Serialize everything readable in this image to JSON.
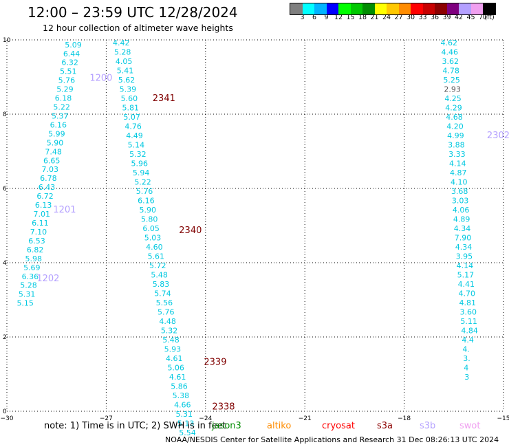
{
  "header": {
    "title": "12:00 – 23:59 UTC 12/28/2024",
    "subtitle": "12 hour collection of altimeter wave heights"
  },
  "color_scale": {
    "unit": "(ft)",
    "colors": [
      "#7f7f7f",
      "#00ffff",
      "#00b4ff",
      "#0000ff",
      "#00ff00",
      "#00c800",
      "#008c00",
      "#ffff00",
      "#ffc800",
      "#ff8c00",
      "#ff0000",
      "#c80000",
      "#8c0000",
      "#7f007f",
      "#b4a0ff",
      "#f0a0f0",
      "#000000"
    ],
    "labels": [
      "3",
      "6",
      "9",
      "12",
      "15",
      "18",
      "21",
      "24",
      "27",
      "30",
      "33",
      "36",
      "39",
      "42",
      "45",
      "70"
    ]
  },
  "chart_data": {
    "type": "scatter",
    "xlim": [
      -30,
      -15
    ],
    "ylim": [
      0,
      10
    ],
    "x_ticks": [
      "−30",
      "−27",
      "−24",
      "−21",
      "−18",
      "−15"
    ],
    "y_ticks": [
      "0",
      "2",
      "4",
      "6",
      "8",
      "10"
    ],
    "grid": true,
    "tracks": [
      {
        "labels": [
          {
            "text": "1200",
            "x": -27.5,
            "y": 8.9,
            "color": "#b4a0ff"
          },
          {
            "text": "1201",
            "x": -28.6,
            "y": 5.35,
            "color": "#b4a0ff"
          },
          {
            "text": "1202",
            "x": -29.1,
            "y": 3.5,
            "color": "#b4a0ff"
          }
        ],
        "points": [
          {
            "x": -28.25,
            "y": 9.8,
            "v": "5.09"
          },
          {
            "x": -28.3,
            "y": 9.56,
            "v": "6.44"
          },
          {
            "x": -28.35,
            "y": 9.32,
            "v": "6.32"
          },
          {
            "x": -28.4,
            "y": 9.08,
            "v": "5.51"
          },
          {
            "x": -28.45,
            "y": 8.84,
            "v": "5.76"
          },
          {
            "x": -28.5,
            "y": 8.6,
            "v": "5.29"
          },
          {
            "x": -28.55,
            "y": 8.36,
            "v": "6.18"
          },
          {
            "x": -28.6,
            "y": 8.12,
            "v": "5.22"
          },
          {
            "x": -28.65,
            "y": 7.88,
            "v": "5.37"
          },
          {
            "x": -28.7,
            "y": 7.64,
            "v": "6.16"
          },
          {
            "x": -28.75,
            "y": 7.4,
            "v": "5.99"
          },
          {
            "x": -28.8,
            "y": 7.16,
            "v": "5.90"
          },
          {
            "x": -28.85,
            "y": 6.92,
            "v": "7.48"
          },
          {
            "x": -28.9,
            "y": 6.68,
            "v": "6.65"
          },
          {
            "x": -28.95,
            "y": 6.44,
            "v": "7.03"
          },
          {
            "x": -29.0,
            "y": 6.2,
            "v": "6.78"
          },
          {
            "x": -29.05,
            "y": 5.96,
            "v": "6.43"
          },
          {
            "x": -29.1,
            "y": 5.72,
            "v": "6.72"
          },
          {
            "x": -29.15,
            "y": 5.48,
            "v": "6.13"
          },
          {
            "x": -29.2,
            "y": 5.24,
            "v": "7.01"
          },
          {
            "x": -29.25,
            "y": 5.0,
            "v": "6.11"
          },
          {
            "x": -29.3,
            "y": 4.76,
            "v": "7.10"
          },
          {
            "x": -29.35,
            "y": 4.52,
            "v": "6.53"
          },
          {
            "x": -29.4,
            "y": 4.28,
            "v": "6.82"
          },
          {
            "x": -29.45,
            "y": 4.04,
            "v": "5.98"
          },
          {
            "x": -29.5,
            "y": 3.8,
            "v": "5.69"
          },
          {
            "x": -29.55,
            "y": 3.56,
            "v": "6.36"
          },
          {
            "x": -29.6,
            "y": 3.32,
            "v": "5.28"
          },
          {
            "x": -29.65,
            "y": 3.08,
            "v": "5.31"
          },
          {
            "x": -29.7,
            "y": 2.84,
            "v": "5.15"
          }
        ]
      },
      {
        "labels": [
          {
            "text": "2341",
            "x": -25.6,
            "y": 8.35,
            "color": "#800000"
          },
          {
            "text": "2340",
            "x": -24.8,
            "y": 4.8,
            "color": "#800000"
          },
          {
            "text": "2339",
            "x": -24.05,
            "y": 1.25,
            "color": "#800000"
          },
          {
            "text": "2338",
            "x": -23.8,
            "y": 0.05,
            "color": "#800000"
          }
        ],
        "points": [
          {
            "x": -26.8,
            "y": 9.85,
            "v": "4.42"
          },
          {
            "x": -26.76,
            "y": 9.6,
            "v": "5.28"
          },
          {
            "x": -26.72,
            "y": 9.35,
            "v": "4.05"
          },
          {
            "x": -26.68,
            "y": 9.1,
            "v": "5.41"
          },
          {
            "x": -26.64,
            "y": 8.85,
            "v": "5.62"
          },
          {
            "x": -26.6,
            "y": 8.6,
            "v": "5.39"
          },
          {
            "x": -26.56,
            "y": 8.35,
            "v": "5.60"
          },
          {
            "x": -26.52,
            "y": 8.1,
            "v": "5.81"
          },
          {
            "x": -26.48,
            "y": 7.85,
            "v": "5.07"
          },
          {
            "x": -26.44,
            "y": 7.6,
            "v": "4.76"
          },
          {
            "x": -26.4,
            "y": 7.35,
            "v": "4.49"
          },
          {
            "x": -26.35,
            "y": 7.1,
            "v": "5.14"
          },
          {
            "x": -26.3,
            "y": 6.85,
            "v": "5.32"
          },
          {
            "x": -26.25,
            "y": 6.6,
            "v": "5.96"
          },
          {
            "x": -26.2,
            "y": 6.35,
            "v": "5.94"
          },
          {
            "x": -26.15,
            "y": 6.1,
            "v": "5.22"
          },
          {
            "x": -26.1,
            "y": 5.85,
            "v": "5.76"
          },
          {
            "x": -26.05,
            "y": 5.6,
            "v": "6.16"
          },
          {
            "x": -26.0,
            "y": 5.35,
            "v": "5.90"
          },
          {
            "x": -25.95,
            "y": 5.1,
            "v": "5.80"
          },
          {
            "x": -25.9,
            "y": 4.85,
            "v": "6.05"
          },
          {
            "x": -25.85,
            "y": 4.6,
            "v": "5.03"
          },
          {
            "x": -25.8,
            "y": 4.35,
            "v": "4.60"
          },
          {
            "x": -25.75,
            "y": 4.1,
            "v": "5.61"
          },
          {
            "x": -25.7,
            "y": 3.85,
            "v": "5.72"
          },
          {
            "x": -25.65,
            "y": 3.6,
            "v": "5.48"
          },
          {
            "x": -25.6,
            "y": 3.35,
            "v": "5.83"
          },
          {
            "x": -25.55,
            "y": 3.1,
            "v": "5.74"
          },
          {
            "x": -25.5,
            "y": 2.85,
            "v": "5.56"
          },
          {
            "x": -25.45,
            "y": 2.6,
            "v": "5.76"
          },
          {
            "x": -25.4,
            "y": 2.35,
            "v": "4.48"
          },
          {
            "x": -25.35,
            "y": 2.1,
            "v": "5.32"
          },
          {
            "x": -25.3,
            "y": 1.85,
            "v": "5.48"
          },
          {
            "x": -25.25,
            "y": 1.6,
            "v": "5.93"
          },
          {
            "x": -25.2,
            "y": 1.35,
            "v": "4.61"
          },
          {
            "x": -25.15,
            "y": 1.1,
            "v": "5.06"
          },
          {
            "x": -25.1,
            "y": 0.85,
            "v": "4.61"
          },
          {
            "x": -25.05,
            "y": 0.6,
            "v": "5.86"
          },
          {
            "x": -25.0,
            "y": 0.35,
            "v": "5.38"
          },
          {
            "x": -24.95,
            "y": 0.1,
            "v": "4.66"
          },
          {
            "x": -24.9,
            "y": -0.15,
            "v": "5.31"
          },
          {
            "x": -24.85,
            "y": -0.4,
            "v": "5.13"
          },
          {
            "x": -24.8,
            "y": -0.65,
            "v": "5.54"
          }
        ]
      },
      {
        "labels": [
          {
            "text": "2302",
            "x": -15.5,
            "y": 7.35,
            "color": "#b4a0ff"
          }
        ],
        "points": [
          {
            "x": -16.9,
            "y": 9.85,
            "v": "4.62"
          },
          {
            "x": -16.88,
            "y": 9.6,
            "v": "4.46"
          },
          {
            "x": -16.86,
            "y": 9.35,
            "v": "3.62"
          },
          {
            "x": -16.84,
            "y": 9.1,
            "v": "4.78"
          },
          {
            "x": -16.82,
            "y": 8.85,
            "v": "5.25"
          },
          {
            "x": -16.8,
            "y": 8.6,
            "v": "2.93"
          },
          {
            "x": -16.78,
            "y": 8.35,
            "v": "4.25"
          },
          {
            "x": -16.76,
            "y": 8.1,
            "v": "4.29"
          },
          {
            "x": -16.74,
            "y": 7.85,
            "v": "4.68"
          },
          {
            "x": -16.72,
            "y": 7.6,
            "v": "4.20"
          },
          {
            "x": -16.7,
            "y": 7.35,
            "v": "4.99"
          },
          {
            "x": -16.68,
            "y": 7.1,
            "v": "3.88"
          },
          {
            "x": -16.66,
            "y": 6.85,
            "v": "3.33"
          },
          {
            "x": -16.64,
            "y": 6.6,
            "v": "4.14"
          },
          {
            "x": -16.62,
            "y": 6.35,
            "v": "4.87"
          },
          {
            "x": -16.6,
            "y": 6.1,
            "v": "4.10"
          },
          {
            "x": -16.58,
            "y": 5.85,
            "v": "3.68"
          },
          {
            "x": -16.56,
            "y": 5.6,
            "v": "3.03"
          },
          {
            "x": -16.54,
            "y": 5.35,
            "v": "4.06"
          },
          {
            "x": -16.52,
            "y": 5.1,
            "v": "4.89"
          },
          {
            "x": -16.5,
            "y": 4.85,
            "v": "4.34"
          },
          {
            "x": -16.48,
            "y": 4.6,
            "v": "7.90"
          },
          {
            "x": -16.46,
            "y": 4.35,
            "v": "4.34"
          },
          {
            "x": -16.44,
            "y": 4.1,
            "v": "3.95"
          },
          {
            "x": -16.42,
            "y": 3.85,
            "v": "4.14"
          },
          {
            "x": -16.4,
            "y": 3.6,
            "v": "5.17"
          },
          {
            "x": -16.38,
            "y": 3.35,
            "v": "4.41"
          },
          {
            "x": -16.36,
            "y": 3.1,
            "v": "4.70"
          },
          {
            "x": -16.34,
            "y": 2.85,
            "v": "4.81"
          },
          {
            "x": -16.32,
            "y": 2.6,
            "v": "3.60"
          },
          {
            "x": -16.3,
            "y": 2.35,
            "v": "5.11"
          },
          {
            "x": -16.28,
            "y": 2.1,
            "v": "4.84"
          },
          {
            "x": -16.26,
            "y": 1.85,
            "v": "4.4"
          },
          {
            "x": -16.24,
            "y": 1.6,
            "v": "4."
          },
          {
            "x": -16.22,
            "y": 1.35,
            "v": "3."
          },
          {
            "x": -16.2,
            "y": 1.1,
            "v": "4"
          },
          {
            "x": -16.18,
            "y": 0.85,
            "v": "3"
          }
        ]
      }
    ]
  },
  "footer": {
    "note": "note:  1) Time is in UTC; 2) SWH is in feet",
    "legend": [
      {
        "label": "jason3",
        "color": "#008c00"
      },
      {
        "label": "altiko",
        "color": "#ff8c00"
      },
      {
        "label": "cryosat",
        "color": "#ff0000"
      },
      {
        "label": "s3a",
        "color": "#8c0000"
      },
      {
        "label": "s3b",
        "color": "#b4a0ff"
      },
      {
        "label": "swot",
        "color": "#f0a0f0"
      }
    ],
    "credit": "NOAA/NESDIS Center for Satellite Applications and Research    31 Dec 08:26:13 UTC 2024"
  }
}
